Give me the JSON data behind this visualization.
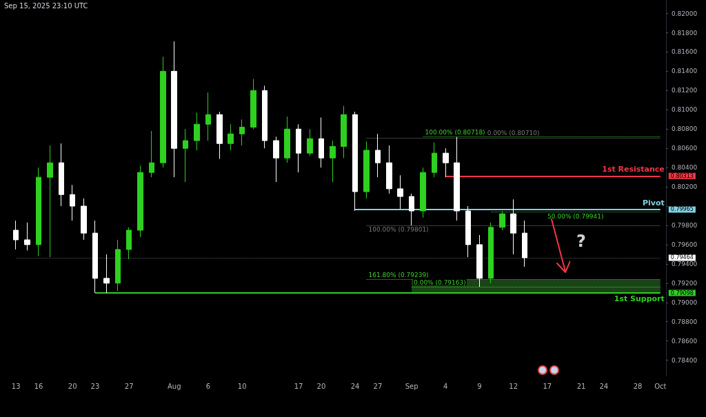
{
  "chart_data": {
    "type": "candlestick",
    "categories": [
      "13",
      null,
      "16",
      null,
      null,
      "20",
      null,
      "23",
      null,
      null,
      "27",
      null,
      null,
      null,
      "Aug",
      null,
      null,
      "6",
      null,
      null,
      "10",
      null,
      null,
      null,
      null,
      "17",
      null,
      "20",
      null,
      null,
      "24",
      null,
      "27",
      null,
      null,
      "Sep",
      null,
      null,
      "4",
      null,
      null,
      "9",
      null,
      null,
      "12",
      null,
      null,
      "17",
      null,
      null,
      "21",
      null,
      "24",
      null,
      null,
      "28",
      null,
      "Oct"
    ],
    "ohlc": [
      [
        0.7975,
        0.7985,
        0.7955,
        0.7965
      ],
      [
        0.7965,
        0.7983,
        0.7954,
        0.796
      ],
      [
        0.796,
        0.804,
        0.7948,
        0.803
      ],
      [
        0.803,
        0.8063,
        0.7947,
        0.8045
      ],
      [
        0.8045,
        0.8065,
        0.8,
        0.8012
      ],
      [
        0.8012,
        0.8022,
        0.7985,
        0.8
      ],
      [
        0.8,
        0.8008,
        0.7965,
        0.7972
      ],
      [
        0.7972,
        0.7985,
        0.791,
        0.7925
      ],
      [
        0.7925,
        0.795,
        0.791,
        0.792
      ],
      [
        0.792,
        0.7965,
        0.7912,
        0.7955
      ],
      [
        0.7955,
        0.7978,
        0.7945,
        0.7975
      ],
      [
        0.7975,
        0.8042,
        0.7968,
        0.8035
      ],
      [
        0.8035,
        0.8078,
        0.803,
        0.8045
      ],
      [
        0.8045,
        0.8155,
        0.804,
        0.814
      ],
      [
        0.814,
        0.8171,
        0.803,
        0.806
      ],
      [
        0.806,
        0.808,
        0.8025,
        0.8068
      ],
      [
        0.8068,
        0.8097,
        0.8058,
        0.8085
      ],
      [
        0.8085,
        0.8118,
        0.8068,
        0.8095
      ],
      [
        0.8095,
        0.8098,
        0.8049,
        0.8065
      ],
      [
        0.8065,
        0.8085,
        0.8058,
        0.8075
      ],
      [
        0.8075,
        0.809,
        0.8063,
        0.8082
      ],
      [
        0.8082,
        0.8132,
        0.808,
        0.812
      ],
      [
        0.812,
        0.8125,
        0.806,
        0.8068
      ],
      [
        0.8068,
        0.8072,
        0.8025,
        0.805
      ],
      [
        0.805,
        0.8093,
        0.8045,
        0.808
      ],
      [
        0.808,
        0.8085,
        0.8035,
        0.8055
      ],
      [
        0.8055,
        0.808,
        0.8052,
        0.807
      ],
      [
        0.807,
        0.8092,
        0.804,
        0.805
      ],
      [
        0.805,
        0.8068,
        0.8025,
        0.8062
      ],
      [
        0.8062,
        0.8104,
        0.805,
        0.8095
      ],
      [
        0.8095,
        0.8098,
        0.7995,
        0.8015
      ],
      [
        0.8015,
        0.8067,
        0.8008,
        0.8058
      ],
      [
        0.8058,
        0.8075,
        0.803,
        0.8045
      ],
      [
        0.8045,
        0.8063,
        0.8013,
        0.8018
      ],
      [
        0.8018,
        0.8032,
        0.7997,
        0.801
      ],
      [
        0.801,
        0.8013,
        0.798,
        0.7995
      ],
      [
        0.7995,
        0.804,
        0.7988,
        0.8035
      ],
      [
        0.8035,
        0.8066,
        0.803,
        0.8055
      ],
      [
        0.8055,
        0.806,
        0.803,
        0.8045
      ],
      [
        0.8045,
        0.80718,
        0.7985,
        0.7995
      ],
      [
        0.7995,
        0.8,
        0.7947,
        0.796
      ],
      [
        0.796,
        0.797,
        0.79163,
        0.7925
      ],
      [
        0.7925,
        0.7983,
        0.792,
        0.7978
      ],
      [
        0.7978,
        0.7995,
        0.7975,
        0.7992
      ],
      [
        0.7992,
        0.8007,
        0.795,
        0.7972
      ],
      [
        0.7972,
        0.7985,
        0.7937,
        0.79464
      ],
      null,
      null,
      null,
      null,
      null,
      null,
      null,
      null,
      null,
      null,
      null,
      null
    ],
    "colors": [
      "#ffffff",
      "#ffffff",
      "#2ed11f",
      "#2ed11f",
      "#ffffff",
      "#ffffff",
      "#ffffff",
      "#ffffff",
      "#ffffff",
      "#2ed11f",
      "#2ed11f",
      "#2ed11f",
      "#2ed11f",
      "#2ed11f",
      "#ffffff",
      "#2ed11f",
      "#2ed11f",
      "#2ed11f",
      "#ffffff",
      "#2ed11f",
      "#2ed11f",
      "#2ed11f",
      "#ffffff",
      "#ffffff",
      "#2ed11f",
      "#ffffff",
      "#2ed11f",
      "#ffffff",
      "#2ed11f",
      "#2ed11f",
      "#ffffff",
      "#2ed11f",
      "#ffffff",
      "#ffffff",
      "#ffffff",
      "#ffffff",
      "#2ed11f",
      "#2ed11f",
      "#ffffff",
      "#ffffff",
      "#ffffff",
      "#ffffff",
      "#2ed11f",
      "#2ed11f",
      "#ffffff",
      "#ffffff",
      null,
      null,
      null,
      null,
      null,
      null,
      null,
      null,
      null,
      null,
      null,
      null
    ],
    "ylim": [
      0.7824,
      0.8214
    ],
    "yticks": [
      {
        "value": 0.784,
        "label": "0.78400"
      },
      {
        "value": 0.786,
        "label": "0.78600"
      },
      {
        "value": 0.788,
        "label": "0.78800"
      },
      {
        "value": 0.79,
        "label": "0.79000"
      },
      {
        "value": 0.792,
        "label": "0.79200"
      },
      {
        "value": 0.794,
        "label": "0.79400"
      },
      {
        "value": 0.796,
        "label": "0.79600"
      },
      {
        "value": 0.798,
        "label": "0.79800"
      },
      {
        "value": 0.8,
        "label": null
      },
      {
        "value": 0.802,
        "label": "0.80200"
      },
      {
        "value": 0.804,
        "label": "0.80400"
      },
      {
        "value": 0.806,
        "label": "0.80600"
      },
      {
        "value": 0.808,
        "label": "0.80800"
      },
      {
        "value": 0.81,
        "label": "0.81000"
      },
      {
        "value": 0.812,
        "label": "0.81200"
      },
      {
        "value": 0.814,
        "label": "0.81400"
      },
      {
        "value": 0.816,
        "label": "0.81600"
      },
      {
        "value": 0.818,
        "label": "0.81800"
      },
      {
        "value": 0.82,
        "label": "0.82000"
      }
    ],
    "ref_lines": [
      {
        "axis": "y",
        "value": 0.80313,
        "label": "0.80313",
        "color": "#f23645",
        "line_style": "solid"
      },
      {
        "axis": "y",
        "value": 0.79965,
        "label": "0.79965",
        "color": "#7fd3e6",
        "line_style": "solid"
      },
      {
        "axis": "y",
        "value": 0.79098,
        "label": "0.79098",
        "color": "#2ed11f",
        "line_style": "solid"
      },
      {
        "axis": "y",
        "value": 0.79464,
        "label": "0.79464",
        "color": "#555555",
        "line_style": "dotted"
      },
      {
        "axis": "y",
        "value": 0.8071,
        "label": "0.00% (0.80710)",
        "color": "#787878",
        "line_style": "dotted"
      },
      {
        "axis": "y",
        "value": 0.80718,
        "label": "100.00% (0.80718)",
        "color": "#3ecf2e",
        "line_style": "dotted"
      },
      {
        "axis": "y",
        "value": 0.79941,
        "label": "50.00% (0.79941)",
        "color": "#3ecf2e",
        "line_style": "dotted"
      },
      {
        "axis": "y",
        "value": 0.79801,
        "label": "100.00% (0.79801)",
        "color": "#787878",
        "line_style": "dotted"
      },
      {
        "axis": "y",
        "value": 0.79239,
        "label": "161.80% (0.79239)",
        "color": "#3ecf2e",
        "line_style": "dotted"
      },
      {
        "axis": "y",
        "value": 0.79163,
        "label": "0.00% (0.79163)",
        "color": "#3ecf2e",
        "line_style": "dotted"
      }
    ],
    "bands": [
      {
        "axis": "y",
        "from": 0.79098,
        "to": 0.79239,
        "color": "#1d4a1a"
      }
    ],
    "annotations": [
      "Sep 15, 2025 23:10 UTC",
      "?",
      "1st Resistance",
      "Pivot",
      "1st Support"
    ]
  }
}
